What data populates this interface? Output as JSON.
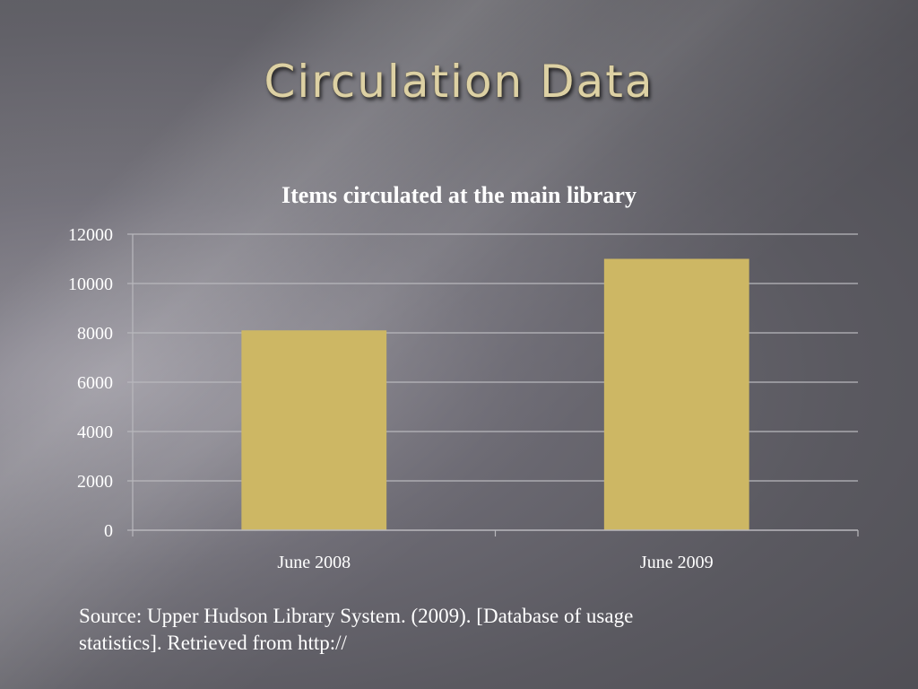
{
  "slide": {
    "title": "Circulation Data",
    "source_line1": "Source: Upper Hudson Library System. (2009).  [Database of usage",
    "source_line2": "statistics].  Retrieved from http://"
  },
  "colors": {
    "title_text": "#ddd1a4",
    "bar": "#cdb764",
    "grid": "#b9b8bd",
    "text": "#ffffff"
  },
  "chart_data": {
    "type": "bar",
    "title": "Items circulated at the main library",
    "xlabel": "",
    "ylabel": "",
    "categories": [
      "June 2008",
      "June 2009"
    ],
    "values": [
      8100,
      11000
    ],
    "ylim": [
      0,
      12000
    ],
    "yticks": [
      "0",
      "2000",
      "4000",
      "6000",
      "8000",
      "10000",
      "12000"
    ],
    "grid": true,
    "legend": "none"
  }
}
